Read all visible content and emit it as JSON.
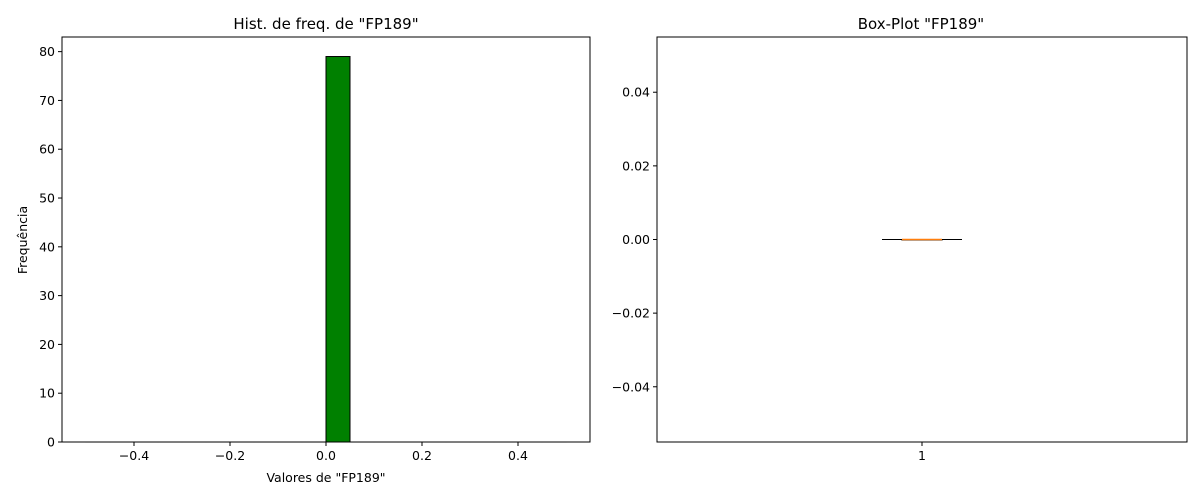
{
  "chart_data": [
    {
      "type": "bar",
      "title": "Hist. de freq. de \"FP189\"",
      "xlabel": "Valores de \"FP189\"",
      "ylabel": "Frequência",
      "xlim": [
        -0.55,
        0.55
      ],
      "ylim": [
        0,
        83
      ],
      "x_ticks": [
        "−0.4",
        "−0.2",
        "0.0",
        "0.2",
        "0.4"
      ],
      "x_tick_values": [
        -0.4,
        -0.2,
        0.0,
        0.2,
        0.4
      ],
      "y_ticks": [
        "0",
        "10",
        "20",
        "30",
        "40",
        "50",
        "60",
        "70",
        "80"
      ],
      "y_tick_values": [
        0,
        10,
        20,
        30,
        40,
        50,
        60,
        70,
        80
      ],
      "bins": [
        {
          "x0": -0.5,
          "x1": -0.45,
          "count": 0
        },
        {
          "x0": -0.45,
          "x1": -0.4,
          "count": 0
        },
        {
          "x0": -0.4,
          "x1": -0.35,
          "count": 0
        },
        {
          "x0": -0.35,
          "x1": -0.3,
          "count": 0
        },
        {
          "x0": -0.3,
          "x1": -0.25,
          "count": 0
        },
        {
          "x0": -0.25,
          "x1": -0.2,
          "count": 0
        },
        {
          "x0": -0.2,
          "x1": -0.15,
          "count": 0
        },
        {
          "x0": -0.15,
          "x1": -0.1,
          "count": 0
        },
        {
          "x0": -0.1,
          "x1": -0.05,
          "count": 0
        },
        {
          "x0": -0.05,
          "x1": 0.0,
          "count": 0
        },
        {
          "x0": 0.0,
          "x1": 0.05,
          "count": 79
        },
        {
          "x0": 0.05,
          "x1": 0.1,
          "count": 0
        },
        {
          "x0": 0.1,
          "x1": 0.15,
          "count": 0
        },
        {
          "x0": 0.15,
          "x1": 0.2,
          "count": 0
        },
        {
          "x0": 0.2,
          "x1": 0.25,
          "count": 0
        },
        {
          "x0": 0.25,
          "x1": 0.3,
          "count": 0
        },
        {
          "x0": 0.3,
          "x1": 0.35,
          "count": 0
        },
        {
          "x0": 0.35,
          "x1": 0.4,
          "count": 0
        },
        {
          "x0": 0.4,
          "x1": 0.45,
          "count": 0
        },
        {
          "x0": 0.45,
          "x1": 0.5,
          "count": 0
        }
      ],
      "bar_color": "#008000",
      "edge_color": "#000000"
    },
    {
      "type": "box",
      "title": "Box-Plot \"FP189\"",
      "categories": [
        "1"
      ],
      "ylim": [
        -0.055,
        0.055
      ],
      "y_ticks": [
        "−0.04",
        "−0.02",
        "0.00",
        "0.02",
        "0.04"
      ],
      "y_tick_values": [
        -0.04,
        -0.02,
        0.0,
        0.02,
        0.04
      ],
      "stats": {
        "min": 0.0,
        "q1": 0.0,
        "median": 0.0,
        "q3": 0.0,
        "max": 0.0
      },
      "median_color": "#ff7f0e",
      "box_color": "#000000"
    }
  ]
}
